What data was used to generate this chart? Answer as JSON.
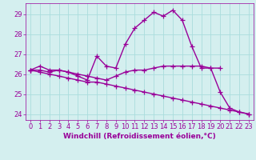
{
  "background_color": "#d4efef",
  "grid_color": "#aadddd",
  "line_color": "#990099",
  "marker": "+",
  "markersize": 4,
  "linewidth": 1.0,
  "xlim": [
    -0.5,
    23.5
  ],
  "ylim": [
    23.7,
    29.55
  ],
  "yticks": [
    24,
    25,
    26,
    27,
    28,
    29
  ],
  "xticks": [
    0,
    1,
    2,
    3,
    4,
    5,
    6,
    7,
    8,
    9,
    10,
    11,
    12,
    13,
    14,
    15,
    16,
    17,
    18,
    19,
    20,
    21,
    22,
    23
  ],
  "xlabel": "Windchill (Refroidissement éolien,°C)",
  "xlabel_fontsize": 6.5,
  "tick_fontsize": 6.0,
  "series": [
    [
      26.2,
      26.4,
      26.2,
      26.2,
      26.1,
      25.9,
      25.7,
      26.9,
      26.4,
      26.3,
      27.5,
      28.3,
      28.7,
      29.1,
      28.9,
      29.2,
      28.7,
      27.4,
      26.3,
      26.3,
      25.1,
      24.3,
      24.1,
      24.0
    ],
    [
      26.2,
      26.2,
      26.1,
      26.2,
      26.1,
      26.0,
      25.9,
      25.8,
      25.7,
      25.9,
      26.1,
      26.2,
      26.2,
      26.3,
      26.4,
      26.4,
      26.4,
      26.4,
      26.4,
      26.3,
      26.3,
      null,
      null,
      null
    ],
    [
      26.2,
      26.1,
      26.0,
      25.9,
      25.8,
      25.7,
      25.6,
      25.6,
      25.5,
      25.4,
      25.3,
      25.2,
      25.1,
      25.0,
      24.9,
      24.8,
      24.7,
      24.6,
      24.5,
      24.4,
      24.3,
      24.2,
      24.1,
      24.0
    ]
  ]
}
